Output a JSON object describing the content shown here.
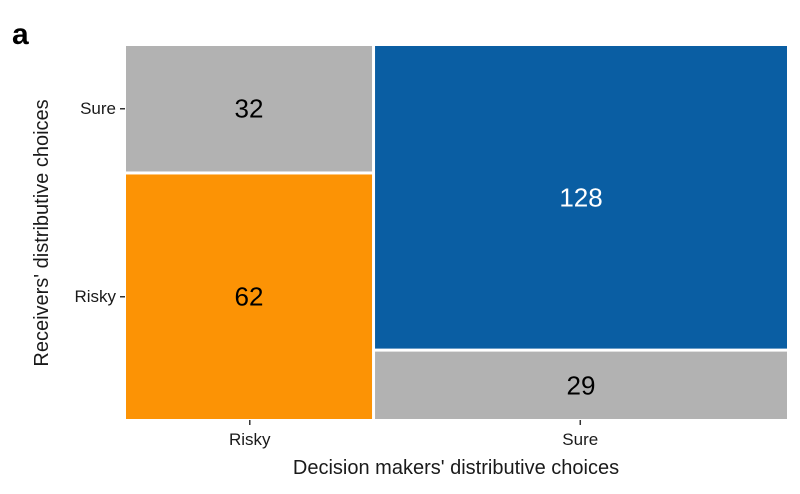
{
  "panel_label": "a",
  "chart_data": {
    "type": "mosaic",
    "title": "",
    "xlabel": "Decision makers' distributive choices",
    "ylabel": "Receivers' distributive choices",
    "x_categories": [
      "Risky",
      "Sure"
    ],
    "y_categories": [
      "Risky",
      "Sure"
    ],
    "cells": [
      {
        "x": "Risky",
        "y": "Risky",
        "count": 62,
        "fill": "#fc9305",
        "label_color": "#000000"
      },
      {
        "x": "Risky",
        "y": "Sure",
        "count": 32,
        "fill": "#b2b2b2",
        "label_color": "#000000"
      },
      {
        "x": "Sure",
        "y": "Risky",
        "count": 29,
        "fill": "#b2b2b2",
        "label_color": "#000000"
      },
      {
        "x": "Sure",
        "y": "Sure",
        "count": 128,
        "fill": "#0a5ea3",
        "label_color": "#ffffff"
      }
    ],
    "y_tick_positions": {
      "Risky": "center of Risky-column Risky cell",
      "Sure": "center of Risky-column Sure cell"
    },
    "grid": false,
    "legend": "none"
  }
}
